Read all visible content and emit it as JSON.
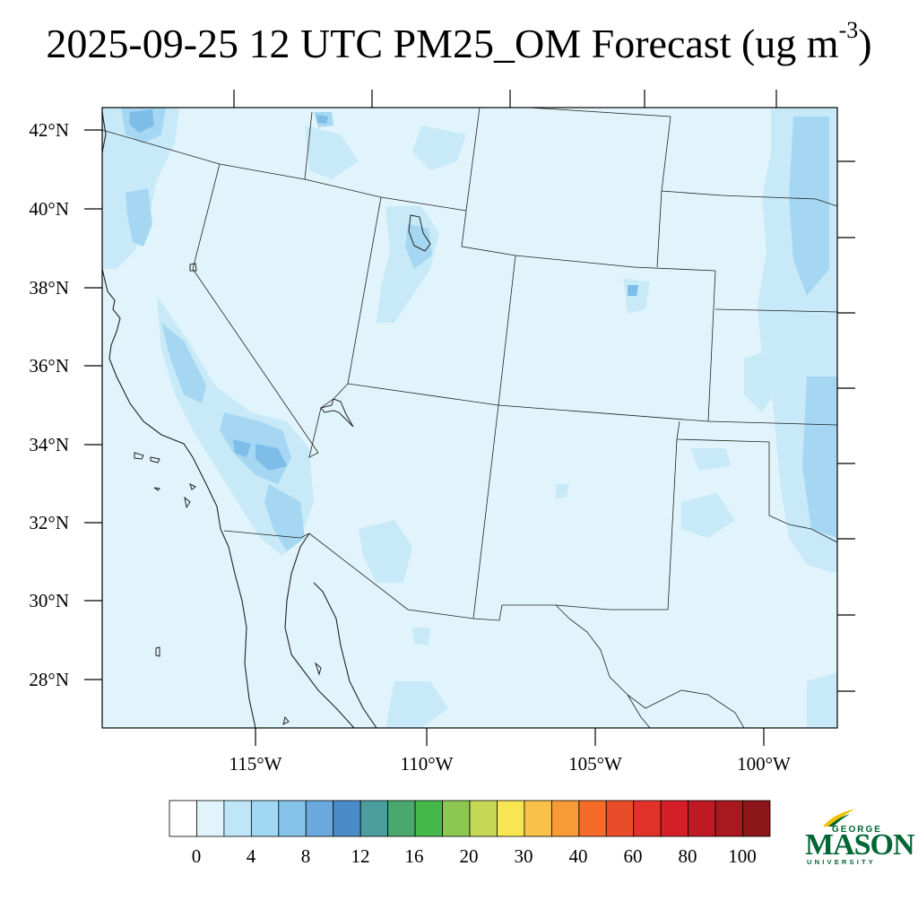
{
  "title": {
    "main": "2025-09-25 12 UTC PM25_OM Forecast (ug m",
    "exponent": "-3",
    "close": ")"
  },
  "map": {
    "lat_labels": [
      "42°N",
      "40°N",
      "38°N",
      "36°N",
      "34°N",
      "32°N",
      "30°N",
      "28°N"
    ],
    "lon_labels": [
      "115°W",
      "110°W",
      "105°W",
      "100°W"
    ],
    "background_color": "#e1f4fc",
    "light_patch_color": "#c7e9f8",
    "mid_patch_color": "#a5d7f2",
    "dark_patch_color": "#7dbde8"
  },
  "colorbar": {
    "colors": [
      "#ffffff",
      "#e1f4fc",
      "#bfe6f7",
      "#a0d8f4",
      "#86c3eb",
      "#6aa8de",
      "#4a8cca",
      "#4c9e9e",
      "#4aa86e",
      "#46b84a",
      "#8cc752",
      "#c5d856",
      "#f7e552",
      "#f9c04a",
      "#f89a38",
      "#f46b2a",
      "#e84b28",
      "#e03228",
      "#d41f28",
      "#bf1a24",
      "#a8181e",
      "#8c1619"
    ],
    "tick_labels": [
      "0",
      "4",
      "8",
      "12",
      "16",
      "20",
      "30",
      "40",
      "60",
      "80",
      "100"
    ]
  },
  "logo": {
    "line1": "GEORGE",
    "line2": "MASON",
    "line3": "UNIVERSITY",
    "color": "#006633",
    "accent_color": "#f2c200"
  }
}
